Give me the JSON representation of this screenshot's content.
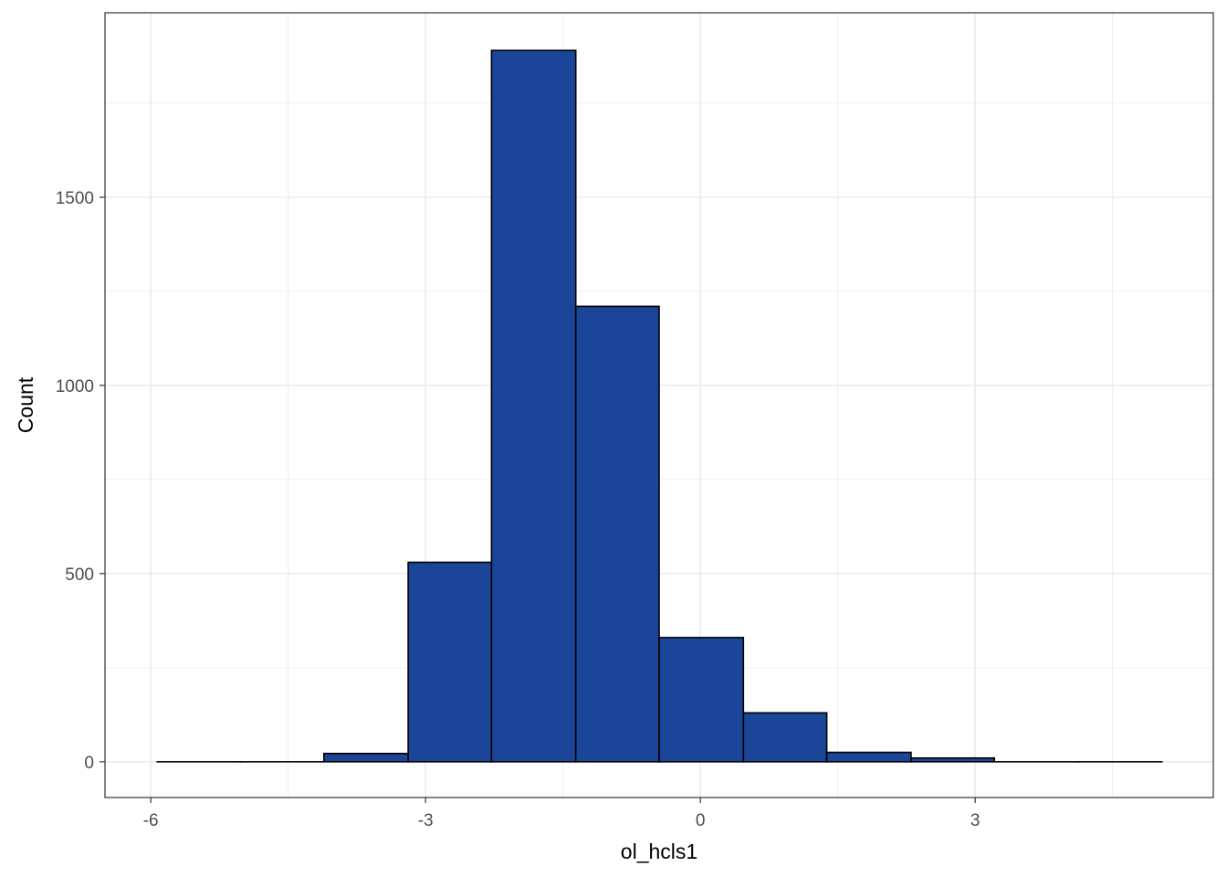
{
  "chart_data": {
    "type": "bar",
    "subtype": "histogram",
    "xlabel": "ol_hcls1",
    "ylabel": "Count",
    "xlim": [
      -6.5,
      5.6
    ],
    "ylim": [
      -95,
      1990
    ],
    "x_ticks": [
      -6,
      -3,
      0,
      3
    ],
    "x_tick_labels": [
      "-6",
      "-3",
      "0",
      "3"
    ],
    "y_ticks": [
      0,
      500,
      1000,
      1500
    ],
    "y_tick_labels": [
      "0",
      "500",
      "1000",
      "1500"
    ],
    "bins": [
      {
        "x0": -5.93,
        "x1": -5.02,
        "count": 0
      },
      {
        "x0": -5.02,
        "x1": -4.11,
        "count": 0
      },
      {
        "x0": -4.11,
        "x1": -3.19,
        "count": 22
      },
      {
        "x0": -3.19,
        "x1": -2.28,
        "count": 530
      },
      {
        "x0": -2.28,
        "x1": -1.36,
        "count": 1890
      },
      {
        "x0": -1.36,
        "x1": -0.45,
        "count": 1210
      },
      {
        "x0": -0.45,
        "x1": 0.47,
        "count": 330
      },
      {
        "x0": 0.47,
        "x1": 1.38,
        "count": 130
      },
      {
        "x0": 1.38,
        "x1": 2.3,
        "count": 25
      },
      {
        "x0": 2.3,
        "x1": 3.21,
        "count": 10
      },
      {
        "x0": 3.21,
        "x1": 4.13,
        "count": 0
      },
      {
        "x0": 4.13,
        "x1": 5.04,
        "count": 0
      }
    ],
    "grid": true,
    "colors": {
      "bar_fill": "#1a4599",
      "bar_stroke": "#000000",
      "grid": "#ebebeb",
      "panel_border": "#333333"
    }
  }
}
